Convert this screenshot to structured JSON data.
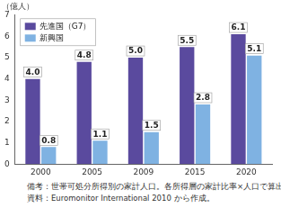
{
  "chart_data": {
    "type": "bar",
    "y_label": "（億人）",
    "categories": [
      "2000",
      "2005",
      "2009",
      "2015",
      "2020"
    ],
    "series": [
      {
        "name": "先進国（G7）",
        "color": "#5a4a9e",
        "values": [
          4.0,
          4.8,
          5.0,
          5.5,
          6.1
        ],
        "value_labels": [
          "4.0",
          "4.8",
          "5.0",
          "5.5",
          "6.1"
        ]
      },
      {
        "name": "新興国",
        "color": "#7fb2e2",
        "values": [
          0.8,
          1.1,
          1.5,
          2.8,
          5.1
        ],
        "value_labels": [
          "0.8",
          "1.1",
          "1.5",
          "2.8",
          "5.1"
        ]
      }
    ],
    "ylim": [
      0,
      7
    ],
    "yticks": [
      0,
      1,
      2,
      3,
      4,
      5,
      6,
      7
    ],
    "grid": false,
    "legend": "upper left",
    "data_labels": true,
    "notes": [
      "備考：世帯可処分所得別の家計人口。各所得層の家計比率×人口で算出。",
      "資料：Euromonitor International 2010 から作成。"
    ]
  }
}
